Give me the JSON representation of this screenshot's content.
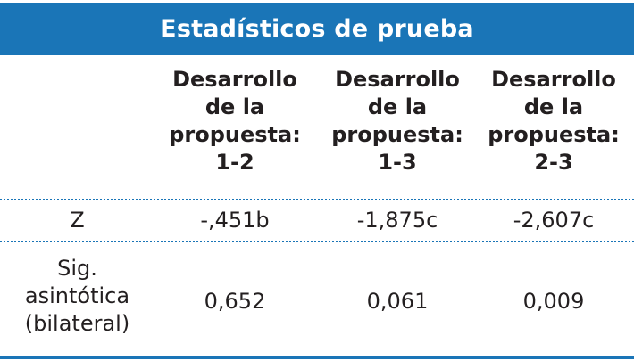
{
  "title": "Estadísticos de prueba",
  "columns": [
    {
      "lines": [
        "Desarrollo",
        "de la",
        "propuesta:",
        "1-2"
      ]
    },
    {
      "lines": [
        "Desarrollo",
        "de la",
        "propuesta:",
        "1-3"
      ]
    },
    {
      "lines": [
        "Desarrollo",
        "de la",
        "propuesta:",
        "2-3"
      ]
    }
  ],
  "rows": [
    {
      "label_lines": [
        "Z"
      ],
      "values": [
        "-,451b",
        "-1,875c",
        "-2,607c"
      ]
    },
    {
      "label_lines": [
        "Sig.",
        "asintótica",
        "(bilateral)"
      ],
      "values": [
        "0,652",
        "0,061",
        "0,009"
      ]
    }
  ],
  "colors": {
    "accent": "#1a75b7",
    "text": "#231f20"
  }
}
